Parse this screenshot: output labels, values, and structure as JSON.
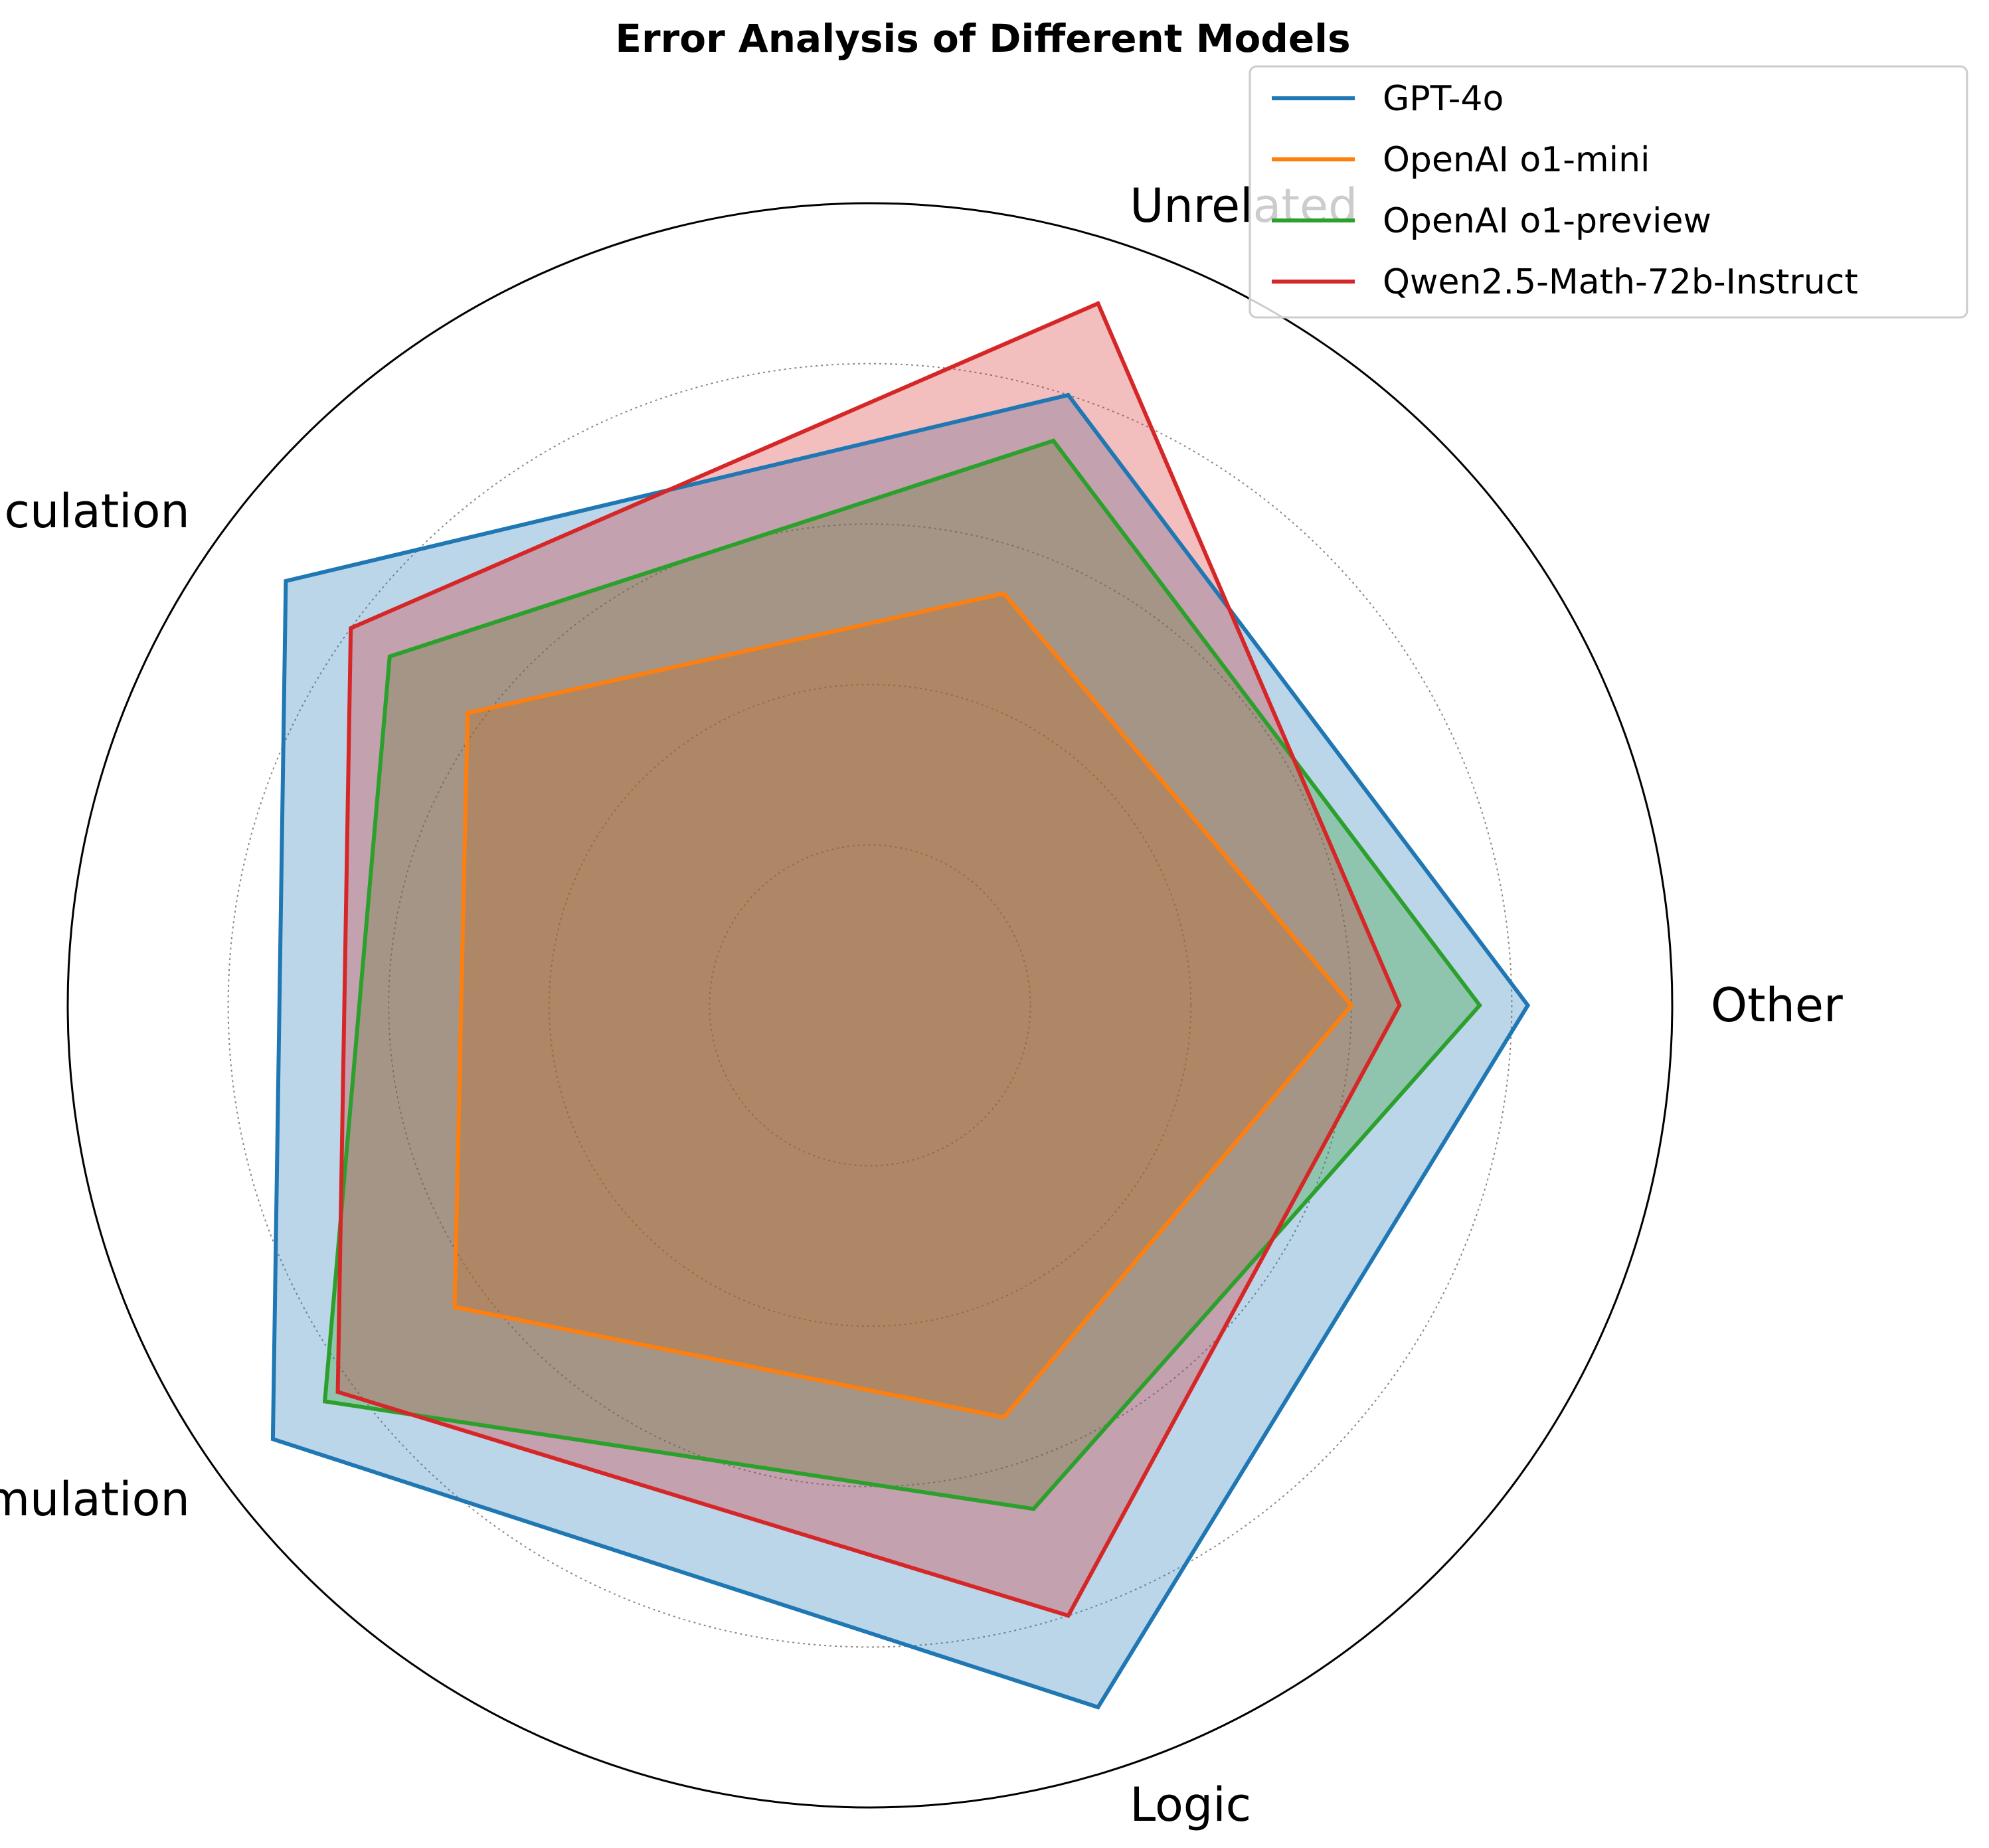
{
  "chart_data": {
    "type": "radar",
    "title": "Error Analysis of Different Models",
    "axes": [
      "Other",
      "Unrelated",
      "Calculation",
      "Accumulation",
      "Logic"
    ],
    "rlim": [
      0,
      5
    ],
    "r_gridlines": [
      1,
      2,
      3,
      4
    ],
    "grid": true,
    "legend_position": "top-right",
    "series": [
      {
        "name": "GPT-4o",
        "color": "#1f77b4",
        "values": [
          4.1,
          4.0,
          4.5,
          4.6,
          4.6
        ]
      },
      {
        "name": "OpenAI o1-mini",
        "color": "#ff7f0e",
        "values": [
          3.0,
          2.7,
          3.1,
          3.2,
          2.7
        ]
      },
      {
        "name": "OpenAI o1-preview",
        "color": "#2ca02c",
        "values": [
          3.8,
          3.7,
          3.7,
          4.2,
          3.3
        ]
      },
      {
        "name": "Qwen2.5-Math-72b-Instruct",
        "color": "#d62728",
        "values": [
          3.3,
          4.6,
          4.0,
          4.1,
          4.0
        ]
      }
    ]
  }
}
